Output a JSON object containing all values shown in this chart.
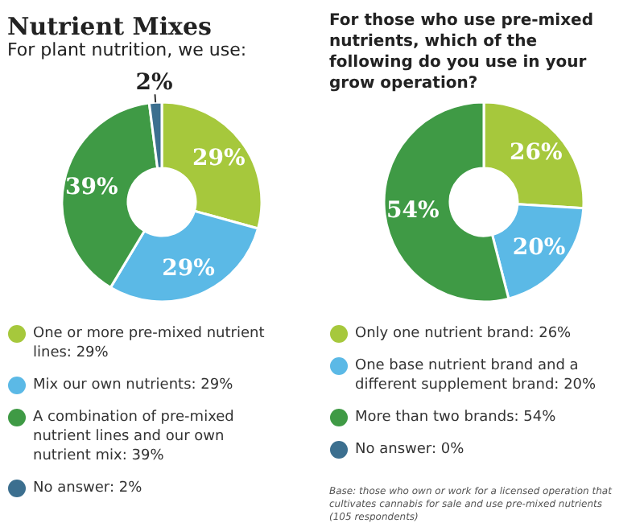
{
  "chart_data": [
    {
      "type": "donut",
      "title": "Nutrient Mixes",
      "subtitle": "For plant nutrition, we use:",
      "categories": [
        "One or more pre-mixed nutrient lines: 29%",
        "Mix our own nutrients: 29%",
        "A combination of pre-mixed nutrient lines and our own nutrient mix: 39%",
        "No answer: 2%"
      ],
      "values": [
        29,
        29,
        39,
        2
      ],
      "colors": [
        "#a6c83c",
        "#5bb9e6",
        "#3f9a45",
        "#3c6f8f"
      ],
      "value_labels": [
        "29%",
        "29%",
        "39%",
        "2%"
      ],
      "legend": "bottom"
    },
    {
      "type": "donut",
      "title": "For those who use pre-mixed nutrients, which of the following do you use in your grow operation?",
      "categories": [
        "Only one nutrient brand: 26%",
        "One base nutrient brand and a different supplement brand: 20%",
        "More than two brands: 54%",
        "No answer: 0%"
      ],
      "values": [
        26,
        20,
        54,
        0
      ],
      "colors": [
        "#a6c83c",
        "#5bb9e6",
        "#3f9a45",
        "#3c6f8f"
      ],
      "value_labels": [
        "26%",
        "20%",
        "54%",
        null
      ],
      "legend": "bottom",
      "annotations": [
        "Base: those who own or work for a licensed operation that cultivates cannabis for sale and use pre-mixed nutrients (105 respondents)"
      ]
    }
  ]
}
